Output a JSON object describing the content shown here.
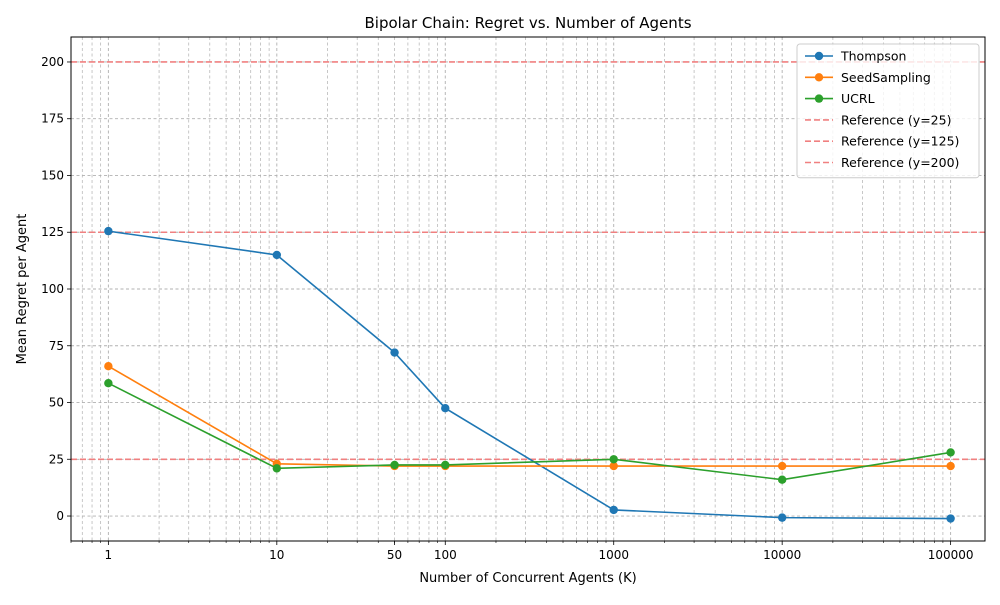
{
  "chart_data": {
    "type": "line",
    "title": "Bipolar Chain: Regret vs. Number of Agents",
    "xlabel": "Number of Concurrent Agents (K)",
    "ylabel": "Mean Regret per Agent",
    "x_scale": "log",
    "xlim": [
      0.6,
      160000
    ],
    "ylim": [
      -11,
      211
    ],
    "x_ticks": [
      1,
      10,
      50,
      100,
      1000,
      10000,
      100000
    ],
    "x_tick_labels": [
      "1",
      "10",
      "50",
      "100",
      "1000",
      "10000",
      "100000"
    ],
    "y_ticks": [
      0,
      25,
      50,
      75,
      100,
      125,
      150,
      175,
      200
    ],
    "y_tick_labels": [
      "0",
      "25",
      "50",
      "75",
      "100",
      "125",
      "150",
      "175",
      "200"
    ],
    "grid": true,
    "legend_position": "top-right",
    "x": [
      1,
      10,
      50,
      100,
      1000,
      10000,
      100000
    ],
    "series": [
      {
        "name": "Thompson",
        "color": "#1f77b4",
        "values": [
          125.5,
          115,
          72,
          47.5,
          2.7,
          -0.7,
          -1.1
        ]
      },
      {
        "name": "SeedSampling",
        "color": "#ff7f0e",
        "values": [
          66,
          23,
          22,
          22,
          22,
          22,
          22
        ]
      },
      {
        "name": "UCRL",
        "color": "#2ca02c",
        "values": [
          58.5,
          21,
          22.5,
          22.5,
          25,
          16,
          28
        ]
      }
    ],
    "reference_lines": [
      {
        "name": "Reference (y=25)",
        "y": 25,
        "color": "#f08080"
      },
      {
        "name": "Reference (y=125)",
        "y": 125,
        "color": "#f08080"
      },
      {
        "name": "Reference (y=200)",
        "y": 200,
        "color": "#f08080"
      }
    ]
  }
}
